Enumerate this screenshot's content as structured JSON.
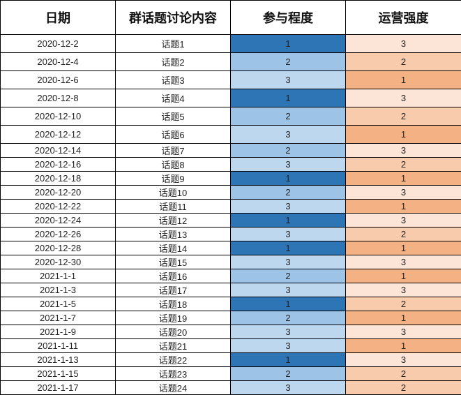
{
  "headers": [
    "日期",
    "群话题讨论内容",
    "参与程度",
    "运营强度"
  ],
  "colors": {
    "participation": {
      "1": "#2E75B6",
      "2": "#9DC3E6",
      "3": "#BDD7EE"
    },
    "operation": {
      "1": "#F4B183",
      "2": "#F8CBAD",
      "3": "#FCE4D6"
    }
  },
  "rows": [
    {
      "date": "2020-12-2",
      "topic": "话题1",
      "participation": "1",
      "operation": "3"
    },
    {
      "date": "2020-12-4",
      "topic": "话题2",
      "participation": "2",
      "operation": "2"
    },
    {
      "date": "2020-12-6",
      "topic": "话题3",
      "participation": "3",
      "operation": "1"
    },
    {
      "date": "2020-12-8",
      "topic": "话题4",
      "participation": "1",
      "operation": "3"
    },
    {
      "date": "2020-12-10",
      "topic": "话题5",
      "participation": "2",
      "operation": "2"
    },
    {
      "date": "2020-12-12",
      "topic": "话题6",
      "participation": "3",
      "operation": "1"
    },
    {
      "date": "2020-12-14",
      "topic": "话题7",
      "participation": "2",
      "operation": "3"
    },
    {
      "date": "2020-12-16",
      "topic": "话题8",
      "participation": "3",
      "operation": "2"
    },
    {
      "date": "2020-12-18",
      "topic": "话题9",
      "participation": "1",
      "operation": "1"
    },
    {
      "date": "2020-12-20",
      "topic": "话题10",
      "participation": "2",
      "operation": "3"
    },
    {
      "date": "2020-12-22",
      "topic": "话题11",
      "participation": "3",
      "operation": "1"
    },
    {
      "date": "2020-12-24",
      "topic": "话题12",
      "participation": "1",
      "operation": "3"
    },
    {
      "date": "2020-12-26",
      "topic": "话题13",
      "participation": "3",
      "operation": "2"
    },
    {
      "date": "2020-12-28",
      "topic": "话题14",
      "participation": "1",
      "operation": "1"
    },
    {
      "date": "2020-12-30",
      "topic": "话题15",
      "participation": "3",
      "operation": "3"
    },
    {
      "date": "2021-1-1",
      "topic": "话题16",
      "participation": "2",
      "operation": "1"
    },
    {
      "date": "2021-1-3",
      "topic": "话题17",
      "participation": "3",
      "operation": "3"
    },
    {
      "date": "2021-1-5",
      "topic": "话题18",
      "participation": "1",
      "operation": "2"
    },
    {
      "date": "2021-1-7",
      "topic": "话题19",
      "participation": "2",
      "operation": "1"
    },
    {
      "date": "2021-1-9",
      "topic": "话题20",
      "participation": "3",
      "operation": "3"
    },
    {
      "date": "2021-1-11",
      "topic": "话题21",
      "participation": "3",
      "operation": "1"
    },
    {
      "date": "2021-1-13",
      "topic": "话题22",
      "participation": "1",
      "operation": "3"
    },
    {
      "date": "2021-1-15",
      "topic": "话题23",
      "participation": "2",
      "operation": "2"
    },
    {
      "date": "2021-1-17",
      "topic": "话题24",
      "participation": "3",
      "operation": "2"
    }
  ]
}
